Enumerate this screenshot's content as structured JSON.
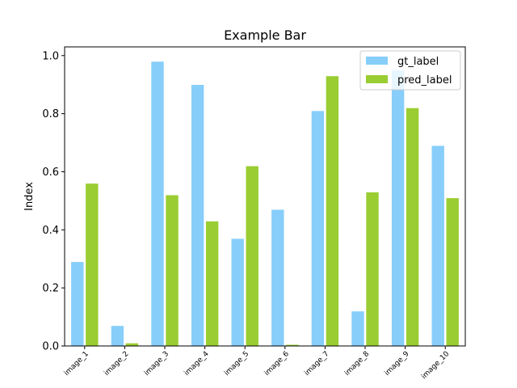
{
  "chart_data": {
    "type": "bar",
    "title": "Example Bar",
    "xlabel": "",
    "ylabel": "Index",
    "ylim": [
      0,
      1.03
    ],
    "yticks": [
      "0.0",
      "0.2",
      "0.4",
      "0.6",
      "0.8",
      "1.0"
    ],
    "categories": [
      "image_1",
      "image_2",
      "image_3",
      "image_4",
      "image_5",
      "image_6",
      "image_7",
      "image_8",
      "image_9",
      "image_10"
    ],
    "series": [
      {
        "name": "gt_label",
        "color": "#87CEFA",
        "values": [
          0.29,
          0.07,
          0.98,
          0.9,
          0.37,
          0.47,
          0.81,
          0.12,
          0.95,
          0.69
        ]
      },
      {
        "name": "pred_label",
        "color": "#9ACD32",
        "values": [
          0.56,
          0.01,
          0.52,
          0.43,
          0.62,
          0.005,
          0.93,
          0.53,
          0.82,
          0.51
        ]
      }
    ],
    "legend_position": "top-right",
    "grid": false
  }
}
